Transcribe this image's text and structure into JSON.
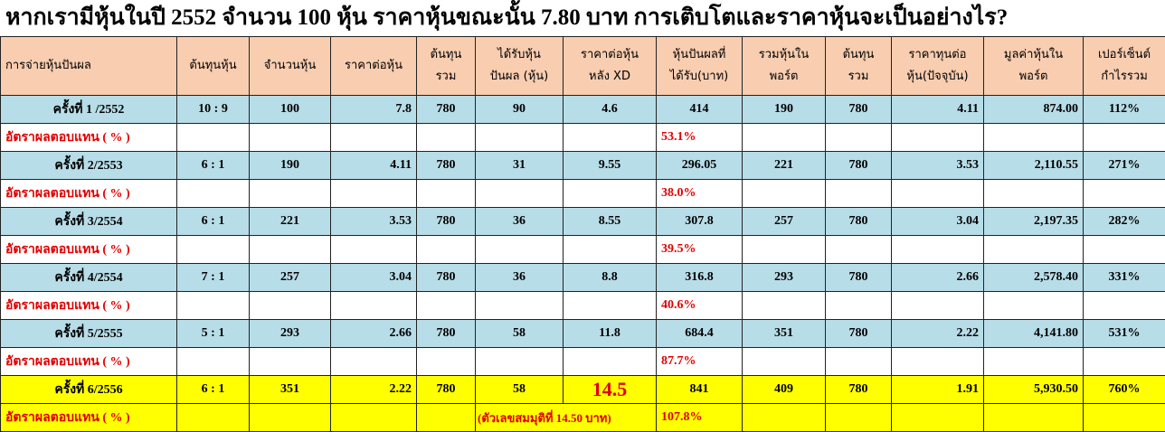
{
  "title": "หากเรามีหุ้นในปี 2552 จำนวน 100 หุ้น ราคาหุ้นขณะนั้น 7.80 บาท การเติบโตและราคาหุ้นจะเป็นอย่างไร?",
  "header": [
    [
      "การจ่ายหุ้นปันผล"
    ],
    [
      "ต้นทุนหุ้น"
    ],
    [
      "จำนวนหุ้น"
    ],
    [
      "ราคาต่อหุ้น"
    ],
    [
      "ต้นทุน",
      "รวม"
    ],
    [
      "ได้รับหุ้น",
      "ปันผล (หุ้น)"
    ],
    [
      "ราคาต่อหุ้น",
      "หลัง XD"
    ],
    [
      "หุ้นปันผลที่",
      "ได้รับ(บาท)"
    ],
    [
      "รวมหุ้นใน",
      "พอร์ต"
    ],
    [
      "ต้นทุน",
      "รวม"
    ],
    [
      "ราคาทุนต่อ",
      "หุ้น(ปัจจุบัน)"
    ],
    [
      "มูลค่าหุ้นใน",
      "พอร์ต"
    ],
    [
      "เปอร์เซ็นต์",
      "กำไรรวม"
    ]
  ],
  "rows": [
    {
      "cells": [
        "ครั้งที่ 1 /2552",
        "10 : 9",
        "100",
        "7.8",
        "780",
        "90",
        "4.6",
        "414",
        "190",
        "780",
        "4.11",
        "874.00",
        "112%"
      ],
      "return": {
        "label": "อัตราผลตอบแทน ( % )",
        "value": "53.1%"
      }
    },
    {
      "cells": [
        "ครั้งที่ 2/2553",
        "6 : 1",
        "190",
        "4.11",
        "780",
        "31",
        "9.55",
        "296.05",
        "221",
        "780",
        "3.53",
        "2,110.55",
        "271%"
      ],
      "return": {
        "label": "อัตราผลตอบแทน ( % )",
        "value": "38.0%"
      }
    },
    {
      "cells": [
        "ครั้งที่ 3/2554",
        "6 : 1",
        "221",
        "3.53",
        "780",
        "36",
        "8.55",
        "307.8",
        "257",
        "780",
        "3.04",
        "2,197.35",
        "282%"
      ],
      "return": {
        "label": "อัตราผลตอบแทน ( % )",
        "value": "39.5%"
      }
    },
    {
      "cells": [
        "ครั้งที่ 4/2554",
        "7 : 1",
        "257",
        "3.04",
        "780",
        "36",
        "8.8",
        "316.8",
        "293",
        "780",
        "2.66",
        "2,578.40",
        "331%"
      ],
      "return": {
        "label": "อัตราผลตอบแทน ( % )",
        "value": "40.6%"
      }
    },
    {
      "cells": [
        "ครั้งที่ 5/2555",
        "5 : 1",
        "293",
        "2.66",
        "780",
        "58",
        "11.8",
        "684.4",
        "351",
        "780",
        "2.22",
        "4,141.80",
        "531%"
      ],
      "return": {
        "label": "อัตราผลตอบแทน ( % )",
        "value": "87.7%"
      }
    },
    {
      "cells": [
        "ครั้งที่ 6/2556",
        "6 : 1",
        "351",
        "2.22",
        "780",
        "58",
        "14.5",
        "841",
        "409",
        "780",
        "1.91",
        "5,930.50",
        "760%"
      ],
      "return": {
        "label": "อัตราผลตอบแทน ( % )",
        "value": "107.8%",
        "note": "(ตัวเลขสมมุติที่ 14.50 บาท)"
      }
    }
  ]
}
